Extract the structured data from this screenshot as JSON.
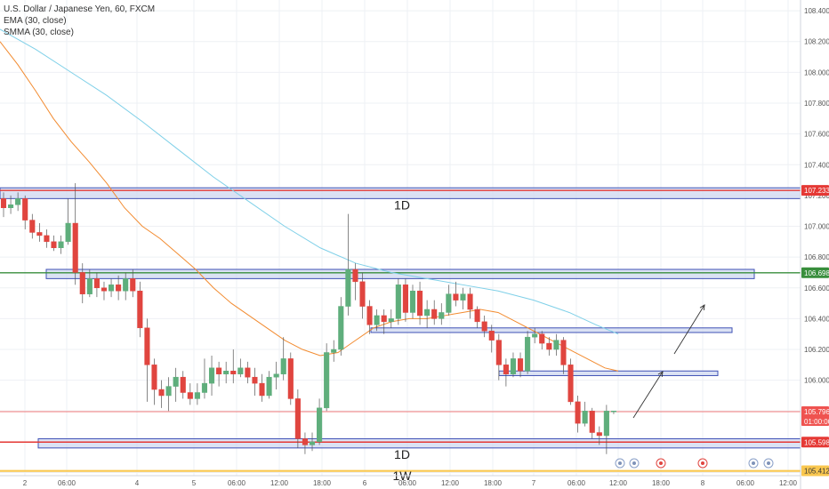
{
  "legend": {
    "symbol": "U.S. Dollar / Japanese Yen, 60, FXCM",
    "ema": "EMA (30, close)",
    "smma": "SMMA (30, close)"
  },
  "chart_data": {
    "type": "candlestick",
    "x_ticks": [
      "2",
      "06:00",
      "4",
      "5",
      "06:00",
      "12:00",
      "18:00",
      "6",
      "06:00",
      "12:00",
      "18:00",
      "7",
      "06:00",
      "12:00",
      "18:00",
      "8",
      "06:00",
      "12:00"
    ],
    "y_ticks": [
      108.4,
      108.2,
      108.0,
      107.8,
      107.6,
      107.4,
      107.2,
      107.0,
      106.8,
      106.6,
      106.4,
      106.2,
      106.0,
      105.8,
      105.6,
      105.4
    ],
    "ylim": [
      105.38,
      108.47
    ],
    "candles": [
      [
        107.18,
        107.12,
        107.22,
        107.06
      ],
      [
        107.12,
        107.14,
        107.2,
        107.08
      ],
      [
        107.14,
        107.18,
        107.22,
        107.1
      ],
      [
        107.18,
        107.04,
        107.2,
        106.98
      ],
      [
        107.04,
        106.96,
        107.08,
        106.92
      ],
      [
        106.96,
        106.94,
        107.02,
        106.9
      ],
      [
        106.94,
        106.9,
        106.98,
        106.86
      ],
      [
        106.9,
        106.86,
        106.94,
        106.84
      ],
      [
        106.86,
        106.9,
        106.94,
        106.82
      ],
      [
        106.9,
        107.02,
        107.18,
        106.88
      ],
      [
        107.02,
        106.7,
        107.28,
        106.62
      ],
      [
        106.7,
        106.56,
        106.76,
        106.5
      ],
      [
        106.56,
        106.66,
        106.72,
        106.54
      ],
      [
        106.66,
        106.6,
        106.7,
        106.54
      ],
      [
        106.6,
        106.58,
        106.64,
        106.52
      ],
      [
        106.58,
        106.62,
        106.66,
        106.54
      ],
      [
        106.62,
        106.58,
        106.68,
        106.52
      ],
      [
        106.58,
        106.66,
        106.7,
        106.52
      ],
      [
        106.66,
        106.58,
        106.72,
        106.54
      ],
      [
        106.58,
        106.34,
        106.64,
        106.28
      ],
      [
        106.34,
        106.1,
        106.4,
        105.86
      ],
      [
        106.1,
        105.94,
        106.14,
        105.84
      ],
      [
        105.94,
        105.9,
        106.0,
        105.82
      ],
      [
        105.9,
        105.96,
        106.02,
        105.8
      ],
      [
        105.96,
        106.02,
        106.08,
        105.86
      ],
      [
        106.02,
        105.92,
        106.06,
        105.88
      ],
      [
        105.92,
        105.88,
        105.98,
        105.84
      ],
      [
        105.88,
        105.92,
        105.98,
        105.84
      ],
      [
        105.92,
        105.98,
        106.14,
        105.88
      ],
      [
        105.98,
        106.08,
        106.16,
        105.9
      ],
      [
        106.08,
        106.04,
        106.12,
        105.96
      ],
      [
        106.04,
        106.06,
        106.12,
        105.98
      ],
      [
        106.06,
        106.04,
        106.2,
        105.98
      ],
      [
        106.04,
        106.08,
        106.14,
        106.02
      ],
      [
        106.08,
        106.02,
        106.12,
        105.98
      ],
      [
        106.02,
        105.98,
        106.08,
        105.9
      ],
      [
        105.98,
        105.9,
        106.04,
        105.86
      ],
      [
        105.9,
        106.02,
        106.06,
        105.88
      ],
      [
        106.02,
        106.04,
        106.12,
        105.94
      ],
      [
        106.04,
        106.14,
        106.28,
        106.0
      ],
      [
        106.14,
        105.88,
        106.18,
        105.84
      ],
      [
        105.88,
        105.62,
        105.94,
        105.56
      ],
      [
        105.62,
        105.58,
        105.66,
        105.52
      ],
      [
        105.58,
        105.6,
        105.66,
        105.54
      ],
      [
        105.6,
        105.82,
        105.88,
        105.58
      ],
      [
        105.82,
        106.18,
        106.24,
        105.8
      ],
      [
        106.18,
        106.2,
        106.26,
        106.12
      ],
      [
        106.2,
        106.48,
        106.54,
        106.16
      ],
      [
        106.48,
        106.72,
        107.08,
        106.42
      ],
      [
        106.72,
        106.64,
        106.76,
        106.52
      ],
      [
        106.64,
        106.48,
        106.7,
        106.4
      ],
      [
        106.48,
        106.36,
        106.52,
        106.3
      ],
      [
        106.36,
        106.42,
        106.46,
        106.32
      ],
      [
        106.42,
        106.38,
        106.46,
        106.3
      ],
      [
        106.38,
        106.4,
        106.46,
        106.34
      ],
      [
        106.4,
        106.62,
        106.66,
        106.36
      ],
      [
        106.62,
        106.44,
        106.66,
        106.38
      ],
      [
        106.44,
        106.58,
        106.62,
        106.4
      ],
      [
        106.58,
        106.42,
        106.64,
        106.36
      ],
      [
        106.42,
        106.46,
        106.52,
        106.34
      ],
      [
        106.46,
        106.4,
        106.52,
        106.36
      ],
      [
        106.4,
        106.44,
        106.5,
        106.36
      ],
      [
        106.44,
        106.56,
        106.62,
        106.42
      ],
      [
        106.56,
        106.52,
        106.64,
        106.48
      ],
      [
        106.52,
        106.56,
        106.6,
        106.46
      ],
      [
        106.56,
        106.46,
        106.6,
        106.4
      ],
      [
        106.46,
        106.38,
        106.48,
        106.34
      ],
      [
        106.38,
        106.32,
        106.42,
        106.28
      ],
      [
        106.32,
        106.26,
        106.36,
        106.18
      ],
      [
        106.26,
        106.1,
        106.3,
        106.0
      ],
      [
        106.1,
        106.04,
        106.14,
        105.96
      ],
      [
        106.04,
        106.14,
        106.18,
        106.02
      ],
      [
        106.14,
        106.06,
        106.18,
        106.02
      ],
      [
        106.06,
        106.28,
        106.32,
        106.04
      ],
      [
        106.28,
        106.3,
        106.34,
        106.24
      ],
      [
        106.3,
        106.24,
        106.32,
        106.2
      ],
      [
        106.24,
        106.2,
        106.28,
        106.16
      ],
      [
        106.2,
        106.26,
        106.3,
        106.16
      ],
      [
        106.26,
        106.1,
        106.28,
        106.04
      ],
      [
        106.1,
        105.86,
        106.14,
        105.84
      ],
      [
        105.86,
        105.72,
        105.9,
        105.66
      ],
      [
        105.72,
        105.8,
        105.86,
        105.7
      ],
      [
        105.8,
        105.66,
        105.82,
        105.62
      ],
      [
        105.66,
        105.64,
        105.7,
        105.58
      ],
      [
        105.64,
        105.8,
        105.84,
        105.52
      ],
      [
        105.8,
        105.8,
        105.8,
        105.78
      ]
    ],
    "ema": [
      [
        106.96,
        108.22
      ],
      [
        106.92,
        108.16
      ],
      [
        106.84,
        108.04
      ],
      [
        106.78,
        107.92
      ],
      [
        106.7,
        107.82
      ],
      [
        106.62,
        107.72
      ],
      [
        106.52,
        107.62
      ],
      [
        106.42,
        107.52
      ],
      [
        106.34,
        107.44
      ],
      [
        106.28,
        107.38
      ],
      [
        106.24,
        107.32
      ],
      [
        106.2,
        107.28
      ],
      [
        106.16,
        107.26
      ],
      [
        106.12,
        107.24
      ],
      [
        106.1,
        107.22
      ],
      [
        106.14,
        107.2
      ],
      [
        106.2,
        107.2
      ],
      [
        106.26,
        107.24
      ],
      [
        106.3,
        107.3
      ],
      [
        106.34,
        107.36
      ],
      [
        106.36,
        107.42
      ],
      [
        106.38,
        107.44
      ],
      [
        106.36,
        107.42
      ],
      [
        106.32,
        107.36
      ],
      [
        106.24,
        107.26
      ],
      [
        106.16,
        107.16
      ],
      [
        106.1,
        107.1
      ]
    ],
    "smma": [
      [
        106.68,
        108.22
      ],
      [
        106.66,
        108.12
      ],
      [
        106.6,
        108.0
      ],
      [
        106.54,
        107.9
      ],
      [
        106.48,
        107.8
      ],
      [
        106.42,
        107.7
      ],
      [
        106.36,
        107.62
      ],
      [
        106.3,
        107.56
      ],
      [
        106.25,
        107.5
      ],
      [
        106.2,
        107.44
      ],
      [
        106.16,
        107.38
      ],
      [
        106.12,
        107.32
      ],
      [
        106.1,
        107.28
      ],
      [
        106.08,
        107.22
      ],
      [
        106.06,
        107.18
      ],
      [
        106.04,
        107.14
      ],
      [
        106.0,
        107.1
      ],
      [
        105.98,
        107.08
      ],
      [
        105.94,
        107.04
      ],
      [
        105.92,
        107.02
      ],
      [
        105.88,
        106.98
      ],
      [
        105.84,
        106.96
      ],
      [
        105.8,
        106.92
      ],
      [
        105.74,
        106.86
      ],
      [
        105.7,
        106.82
      ],
      [
        105.66,
        106.76
      ],
      [
        105.62,
        106.7
      ],
      [
        105.58,
        106.64
      ],
      [
        105.54,
        106.58
      ],
      [
        105.5,
        106.5
      ],
      [
        105.46,
        106.42
      ],
      [
        105.42,
        106.36
      ],
      [
        105.38,
        106.32
      ],
      [
        105.34,
        106.3
      ],
      [
        105.3,
        106.28
      ]
    ],
    "horizontal_lines": [
      {
        "price": 105.796,
        "label": "105.796",
        "color": "#ef5350",
        "sub_label": "01:00:00"
      },
      {
        "price": 106.698,
        "label": "106.698",
        "color": "#388e3c"
      },
      {
        "price": 107.233,
        "label": "107.233",
        "color": "#e53935"
      },
      {
        "price": 105.598,
        "label": "105.598",
        "color": "#e53935"
      },
      {
        "price": 105.412,
        "label": "105.412",
        "color": "#f9c74f"
      }
    ],
    "zones": [
      {
        "label": "1D",
        "top": 107.25,
        "bottom": 107.18
      },
      {
        "label": "",
        "top": 106.72,
        "bottom": 106.66
      },
      {
        "label": "",
        "top": 106.34,
        "bottom": 106.31
      },
      {
        "label": "",
        "top": 106.06,
        "bottom": 106.03
      },
      {
        "label": "1D",
        "top": 105.62,
        "bottom": 105.56
      },
      {
        "label": "1W",
        "top": 105.41,
        "bottom": 105.41
      }
    ],
    "colors": {
      "up": "#26a69a",
      "up_body": "#5fae7c",
      "down": "#e0453f",
      "ema": "#f28b30",
      "smma": "#7fd0e8",
      "grid": "#eef0f4"
    }
  }
}
